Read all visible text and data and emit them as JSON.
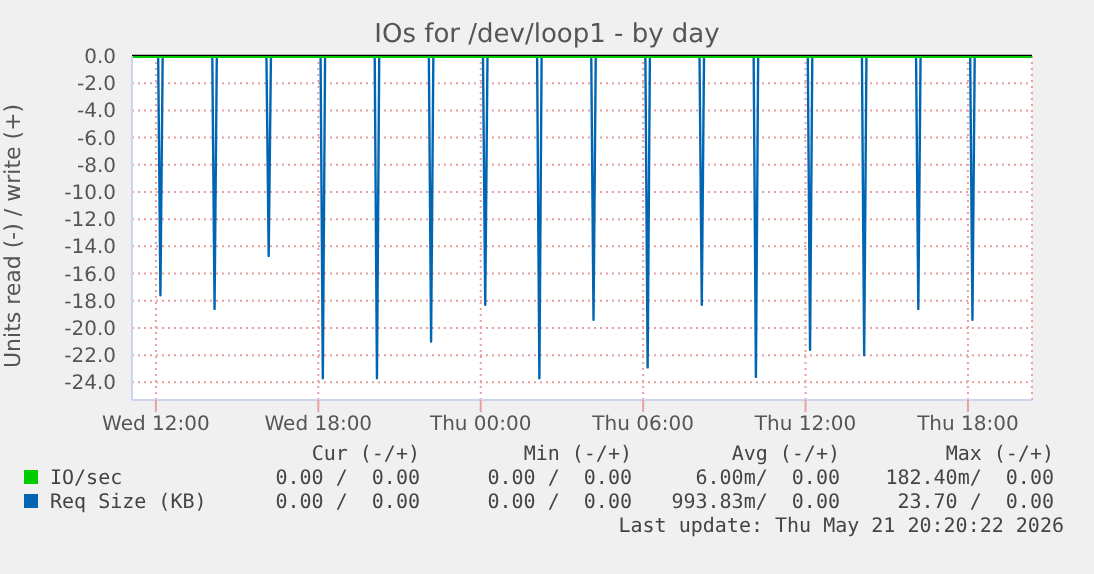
{
  "chart_data": {
    "type": "line",
    "title": "IOs for /dev/loop1 - by day",
    "ylabel": "Units read (-) / write (+)",
    "xlim": [
      "2026-05-20T11:07",
      "2026-05-21T20:22"
    ],
    "xticks": [
      {
        "value": "2026-05-20T12:00",
        "label": "Wed 12:00"
      },
      {
        "value": "2026-05-20T18:00",
        "label": "Wed 18:00"
      },
      {
        "value": "2026-05-21T00:00",
        "label": "Thu 00:00"
      },
      {
        "value": "2026-05-21T06:00",
        "label": "Thu 06:00"
      },
      {
        "value": "2026-05-21T12:00",
        "label": "Thu 12:00"
      },
      {
        "value": "2026-05-21T18:00",
        "label": "Thu 18:00"
      }
    ],
    "ylim": [
      -25.3,
      0
    ],
    "yticks": [
      {
        "value": 0,
        "label": "0.0"
      },
      {
        "value": -2,
        "label": "-2.0"
      },
      {
        "value": -4,
        "label": "-4.0"
      },
      {
        "value": -6,
        "label": "-6.0"
      },
      {
        "value": -8,
        "label": "-8.0"
      },
      {
        "value": -10,
        "label": "-10.0"
      },
      {
        "value": -12,
        "label": "-12.0"
      },
      {
        "value": -14,
        "label": "-14.0"
      },
      {
        "value": -16,
        "label": "-16.0"
      },
      {
        "value": -18,
        "label": "-18.0"
      },
      {
        "value": -20,
        "label": "-20.0"
      },
      {
        "value": -22,
        "label": "-22.0"
      },
      {
        "value": -24,
        "label": "-24.0"
      }
    ],
    "grid": true,
    "legend": "bottom",
    "marker": "none",
    "line_style": "solid",
    "ref_lines": [
      {
        "axis": "y",
        "value": 0,
        "color": "#000000"
      }
    ],
    "series": [
      {
        "name": "IO/sec",
        "color": "#00cc00",
        "x": [
          "2026-05-20T11:07",
          "2026-05-21T20:22"
        ],
        "values": [
          0,
          0
        ]
      },
      {
        "name": "Req Size (KB)",
        "color": "#0066b3",
        "x": [
          "2026-05-20T11:07",
          "2026-05-20T12:05",
          "2026-05-20T12:10",
          "2026-05-20T12:15",
          "2026-05-20T14:05",
          "2026-05-20T14:10",
          "2026-05-20T14:15",
          "2026-05-20T16:05",
          "2026-05-20T16:10",
          "2026-05-20T16:15",
          "2026-05-20T18:05",
          "2026-05-20T18:10",
          "2026-05-20T18:15",
          "2026-05-20T20:05",
          "2026-05-20T20:10",
          "2026-05-20T20:15",
          "2026-05-20T22:05",
          "2026-05-20T22:10",
          "2026-05-20T22:15",
          "2026-05-21T00:05",
          "2026-05-21T00:10",
          "2026-05-21T00:15",
          "2026-05-21T02:05",
          "2026-05-21T02:10",
          "2026-05-21T02:15",
          "2026-05-21T04:05",
          "2026-05-21T04:10",
          "2026-05-21T04:15",
          "2026-05-21T06:05",
          "2026-05-21T06:10",
          "2026-05-21T06:15",
          "2026-05-21T08:05",
          "2026-05-21T08:10",
          "2026-05-21T08:15",
          "2026-05-21T10:05",
          "2026-05-21T10:10",
          "2026-05-21T10:15",
          "2026-05-21T12:05",
          "2026-05-21T12:10",
          "2026-05-21T12:15",
          "2026-05-21T14:05",
          "2026-05-21T14:10",
          "2026-05-21T14:15",
          "2026-05-21T16:05",
          "2026-05-21T16:10",
          "2026-05-21T16:15",
          "2026-05-21T18:05",
          "2026-05-21T18:10",
          "2026-05-21T18:15",
          "2026-05-21T20:22"
        ],
        "values": [
          0,
          0,
          -17.6,
          0,
          0,
          -18.6,
          0,
          0,
          -14.7,
          0,
          0,
          -23.7,
          0,
          0,
          -23.7,
          0,
          0,
          -21.0,
          0,
          0,
          -18.3,
          0,
          0,
          -23.7,
          0,
          0,
          -19.4,
          0,
          0,
          -22.9,
          0,
          0,
          -18.3,
          0,
          0,
          -23.6,
          0,
          0,
          -21.6,
          0,
          0,
          -22.0,
          0,
          0,
          -18.6,
          0,
          0,
          -19.4,
          0,
          0
        ]
      }
    ],
    "annotations": [
      "Cur (-/+)",
      "Min (-/+)",
      "Avg (-/+)",
      "Max (-/+)",
      "0.00 /  0.00",
      "0.00 /  0.00",
      "6.00m/  0.00",
      "182.40m/  0.00",
      "0.00 /  0.00",
      "0.00 /  0.00",
      "993.83m/  0.00",
      "23.70 /  0.00",
      "Last update: Thu May 21 20:20:22 2026"
    ]
  }
}
